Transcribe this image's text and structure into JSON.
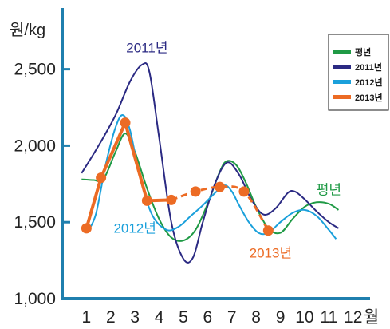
{
  "chart_data": {
    "type": "line",
    "y_unit_label": "원/kg",
    "x_unit_label": "월",
    "x_ticks": [
      "1",
      "2",
      "3",
      "4",
      "5",
      "6",
      "7",
      "8",
      "9",
      "10",
      "11",
      "12"
    ],
    "y_ticks": [
      "1,000",
      "1,500",
      "2,000",
      "2,500"
    ],
    "ylim": [
      1000,
      2900
    ],
    "xlim": [
      0,
      12.7
    ],
    "grid": false,
    "legend_position": "top-right",
    "series": [
      {
        "name": "평년",
        "color": "#1f9a45",
        "style": "smooth",
        "points": [
          [
            0.8,
            1780
          ],
          [
            1.3,
            1775
          ],
          [
            1.7,
            1780
          ],
          [
            2.2,
            1960
          ],
          [
            2.6,
            2080
          ],
          [
            3.0,
            1960
          ],
          [
            3.5,
            1720
          ],
          [
            4.0,
            1520
          ],
          [
            4.5,
            1400
          ],
          [
            5.0,
            1380
          ],
          [
            5.5,
            1450
          ],
          [
            6.0,
            1620
          ],
          [
            6.5,
            1830
          ],
          [
            6.8,
            1900
          ],
          [
            7.2,
            1870
          ],
          [
            7.6,
            1750
          ],
          [
            8.0,
            1600
          ],
          [
            8.5,
            1460
          ],
          [
            9.0,
            1430
          ],
          [
            9.5,
            1520
          ],
          [
            10.0,
            1600
          ],
          [
            10.5,
            1630
          ],
          [
            11.0,
            1620
          ],
          [
            11.4,
            1580
          ]
        ]
      },
      {
        "name": "2011년",
        "color": "#2b2a83",
        "style": "smooth",
        "points": [
          [
            0.8,
            1820
          ],
          [
            1.5,
            2000
          ],
          [
            2.2,
            2200
          ],
          [
            2.8,
            2420
          ],
          [
            3.3,
            2530
          ],
          [
            3.6,
            2480
          ],
          [
            4.0,
            2050
          ],
          [
            4.5,
            1500
          ],
          [
            5.0,
            1260
          ],
          [
            5.4,
            1270
          ],
          [
            5.8,
            1500
          ],
          [
            6.3,
            1750
          ],
          [
            6.8,
            1890
          ],
          [
            7.3,
            1810
          ],
          [
            7.8,
            1650
          ],
          [
            8.3,
            1550
          ],
          [
            8.8,
            1590
          ],
          [
            9.3,
            1690
          ],
          [
            9.6,
            1700
          ],
          [
            10.0,
            1650
          ],
          [
            10.5,
            1570
          ],
          [
            11.0,
            1500
          ],
          [
            11.4,
            1460
          ]
        ]
      },
      {
        "name": "2012년",
        "color": "#1aa0db",
        "style": "smooth",
        "points": [
          [
            1.1,
            1450
          ],
          [
            1.4,
            1560
          ],
          [
            1.8,
            1880
          ],
          [
            2.2,
            2120
          ],
          [
            2.5,
            2200
          ],
          [
            2.8,
            2100
          ],
          [
            3.2,
            1800
          ],
          [
            3.7,
            1550
          ],
          [
            4.3,
            1450
          ],
          [
            4.8,
            1470
          ],
          [
            5.3,
            1540
          ],
          [
            5.8,
            1610
          ],
          [
            6.3,
            1690
          ],
          [
            6.7,
            1740
          ],
          [
            7.0,
            1700
          ],
          [
            7.3,
            1610
          ],
          [
            7.7,
            1500
          ],
          [
            8.1,
            1430
          ],
          [
            8.5,
            1430
          ],
          [
            9.0,
            1500
          ],
          [
            9.5,
            1560
          ],
          [
            10.0,
            1580
          ],
          [
            10.5,
            1540
          ],
          [
            11.0,
            1450
          ],
          [
            11.3,
            1390
          ]
        ]
      },
      {
        "name": "2013년",
        "color": "#ec6b24",
        "style": "markers",
        "points": [
          [
            1.0,
            1460
          ],
          [
            1.6,
            1790
          ],
          [
            2.6,
            2150
          ],
          [
            3.5,
            1640
          ],
          [
            4.5,
            1645
          ],
          [
            5.5,
            1700
          ],
          [
            6.5,
            1730
          ],
          [
            7.5,
            1700
          ],
          [
            8.5,
            1445
          ]
        ]
      }
    ],
    "annotations": [
      {
        "text": "2011년",
        "series": "2011년",
        "x": 3.5,
        "y": 2610
      },
      {
        "text": "2012년",
        "series": "2012년",
        "x": 3.0,
        "y": 1430
      },
      {
        "text": "2013년",
        "series": "2013년",
        "x": 8.6,
        "y": 1270
      },
      {
        "text": "평년",
        "series": "평년",
        "x": 11.0,
        "y": 1680
      }
    ]
  }
}
